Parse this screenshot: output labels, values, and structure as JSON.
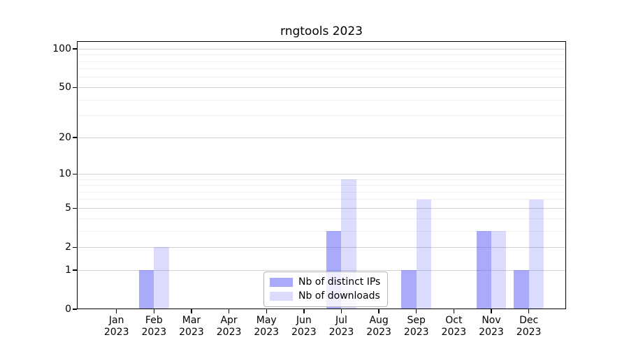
{
  "figure": {
    "background": "#ffffff",
    "title": "rngtools 2023"
  },
  "chart_data": {
    "type": "bar",
    "title": "rngtools 2023",
    "categories": [
      "Jan 2023",
      "Feb 2023",
      "Mar 2023",
      "Apr 2023",
      "May 2023",
      "Jun 2023",
      "Jul 2023",
      "Aug 2023",
      "Sep 2023",
      "Oct 2023",
      "Nov 2023",
      "Dec 2023"
    ],
    "categories_two_line": [
      {
        "month": "Jan",
        "year": "2023"
      },
      {
        "month": "Feb",
        "year": "2023"
      },
      {
        "month": "Mar",
        "year": "2023"
      },
      {
        "month": "Apr",
        "year": "2023"
      },
      {
        "month": "May",
        "year": "2023"
      },
      {
        "month": "Jun",
        "year": "2023"
      },
      {
        "month": "Jul",
        "year": "2023"
      },
      {
        "month": "Aug",
        "year": "2023"
      },
      {
        "month": "Sep",
        "year": "2023"
      },
      {
        "month": "Oct",
        "year": "2023"
      },
      {
        "month": "Nov",
        "year": "2023"
      },
      {
        "month": "Dec",
        "year": "2023"
      }
    ],
    "series": [
      {
        "name": "Nb of distinct IPs",
        "color": "rgba(85,85,245,0.5)",
        "color_on_white": "#aaaafa",
        "values": [
          0,
          1,
          0,
          0,
          0,
          0,
          3,
          0,
          1,
          0,
          3,
          1
        ]
      },
      {
        "name": "Nb of downloads",
        "color": "rgba(85,85,245,0.21)",
        "color_on_white": "#dbdbfa",
        "values": [
          0,
          2,
          0,
          0,
          0,
          0,
          9,
          0,
          6,
          0,
          3,
          6
        ]
      }
    ],
    "xlabel": "",
    "ylabel": "",
    "yscale": "log1p",
    "ylim": [
      0,
      115
    ],
    "yticks": [
      0,
      1,
      2,
      5,
      10,
      20,
      50,
      100
    ],
    "minor_gridlines": [
      3,
      4,
      6,
      7,
      8,
      9,
      30,
      40,
      60,
      70,
      80,
      90
    ],
    "grid": true,
    "major_grid_color": "#d2d2d2",
    "minor_grid_color": "#efefef",
    "legend_position": "lower center"
  }
}
